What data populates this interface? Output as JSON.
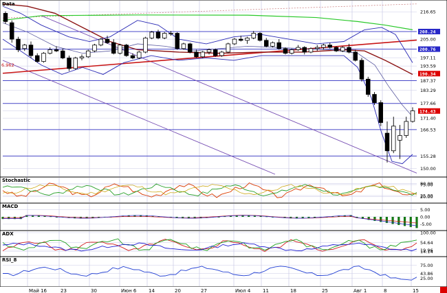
{
  "chart_data": {
    "type": "candlestick",
    "panes": {
      "price": {
        "label": "Data",
        "y_ticks": [
          "216.65",
          "208.24",
          "205.00",
          "200.76",
          "197.11",
          "193.59",
          "190.34",
          "187.37",
          "183.29",
          "177.66",
          "174.43",
          "171.40",
          "166.53",
          "155.28",
          "150.00"
        ],
        "left_annotation": "6.962",
        "ylim": [
          147.5,
          220.5
        ],
        "horizontal_levels": [
          208.24,
          200.76,
          187.37,
          177.66,
          166.53,
          155.28
        ],
        "candles": [
          [
            216.0,
            216.8,
            211.5,
            212.5
          ],
          [
            212.0,
            213.0,
            203.5,
            205.0
          ],
          [
            205.0,
            206.0,
            199.5,
            200.5
          ],
          [
            201.0,
            203.0,
            200.0,
            202.5
          ],
          [
            202.5,
            204.0,
            197.0,
            198.0
          ],
          [
            198.0,
            199.0,
            195.0,
            195.5
          ],
          [
            195.5,
            199.5,
            195.0,
            199.0
          ],
          [
            199.0,
            201.5,
            198.5,
            200.5
          ],
          [
            200.5,
            202.0,
            199.5,
            200.0
          ],
          [
            200.0,
            201.0,
            196.5,
            197.0
          ],
          [
            197.0,
            198.0,
            191.5,
            192.5
          ],
          [
            192.5,
            197.5,
            192.0,
            197.0
          ],
          [
            197.0,
            198.5,
            196.0,
            197.5
          ],
          [
            197.5,
            200.5,
            197.0,
            200.0
          ],
          [
            200.0,
            203.0,
            199.5,
            202.5
          ],
          [
            202.5,
            205.5,
            202.0,
            205.0
          ],
          [
            205.0,
            206.5,
            203.0,
            203.5
          ],
          [
            203.5,
            205.0,
            198.5,
            199.0
          ],
          [
            199.0,
            203.0,
            198.5,
            202.5
          ],
          [
            202.5,
            203.0,
            197.5,
            198.0
          ],
          [
            198.0,
            199.0,
            196.5,
            197.0
          ],
          [
            197.0,
            200.0,
            196.5,
            199.5
          ],
          [
            199.5,
            206.0,
            199.0,
            205.5
          ],
          [
            205.5,
            208.5,
            205.0,
            208.0
          ],
          [
            208.0,
            209.0,
            205.0,
            205.5
          ],
          [
            205.5,
            208.0,
            205.0,
            207.5
          ],
          [
            207.5,
            208.5,
            206.5,
            207.5
          ],
          [
            207.5,
            208.0,
            200.5,
            201.0
          ],
          [
            201.0,
            203.5,
            200.5,
            203.0
          ],
          [
            203.0,
            203.5,
            199.0,
            199.5
          ],
          [
            199.5,
            200.5,
            197.0,
            197.5
          ],
          [
            197.5,
            200.0,
            197.0,
            199.5
          ],
          [
            199.5,
            201.0,
            198.5,
            200.5
          ],
          [
            200.5,
            201.0,
            197.5,
            198.0
          ],
          [
            198.0,
            200.0,
            197.5,
            199.5
          ],
          [
            199.5,
            203.5,
            199.0,
            203.0
          ],
          [
            203.0,
            205.5,
            202.5,
            205.0
          ],
          [
            205.0,
            206.5,
            204.0,
            204.5
          ],
          [
            204.5,
            206.0,
            203.0,
            205.5
          ],
          [
            205.5,
            208.5,
            205.0,
            207.5
          ],
          [
            207.5,
            208.0,
            204.0,
            204.5
          ],
          [
            204.5,
            205.5,
            201.5,
            202.0
          ],
          [
            202.0,
            204.0,
            201.5,
            203.5
          ],
          [
            203.5,
            205.0,
            200.5,
            201.0
          ],
          [
            201.0,
            201.5,
            198.5,
            199.0
          ],
          [
            199.0,
            201.0,
            198.5,
            200.5
          ],
          [
            200.5,
            202.5,
            200.0,
            201.5
          ],
          [
            201.5,
            202.0,
            198.5,
            199.5
          ],
          [
            199.5,
            201.5,
            199.0,
            201.0
          ],
          [
            201.0,
            202.5,
            200.0,
            201.5
          ],
          [
            201.5,
            203.0,
            200.5,
            202.5
          ],
          [
            202.5,
            203.5,
            201.0,
            201.5
          ],
          [
            201.5,
            202.0,
            199.5,
            200.0
          ],
          [
            200.0,
            202.0,
            199.5,
            201.5
          ],
          [
            201.5,
            203.0,
            199.0,
            199.5
          ],
          [
            199.5,
            200.5,
            195.5,
            196.0
          ],
          [
            196.0,
            197.0,
            187.0,
            188.0
          ],
          [
            188.0,
            189.0,
            180.5,
            181.5
          ],
          [
            181.5,
            182.5,
            177.0,
            178.0
          ],
          [
            178.0,
            179.0,
            168.0,
            169.5
          ],
          [
            165.0,
            170.0,
            152.5,
            157.5
          ],
          [
            157.5,
            172.0,
            156.5,
            168.0
          ],
          [
            162.0,
            168.5,
            154.0,
            164.0
          ],
          [
            164.0,
            172.0,
            163.0,
            170.0
          ],
          [
            170.0,
            176.0,
            169.5,
            174.5
          ]
        ]
      },
      "stochastic": {
        "label": "Stochastic",
        "y_ticks": [
          "80.00",
          "75.00",
          "25.00",
          "20.00"
        ]
      },
      "macd": {
        "label": "MACD",
        "y_ticks": [
          "5.00",
          "0.00",
          "-5.00"
        ]
      },
      "adx": {
        "label": "ADX",
        "y_ticks": [
          "100.00",
          "54.64",
          "19.96",
          "14.14"
        ]
      },
      "rsi": {
        "label": "RSI_8",
        "y_ticks": [
          "75.00",
          "43.86",
          "25.00"
        ]
      }
    },
    "x_ticks": [
      "Май 16",
      "23",
      "30",
      "Июн 6",
      "14",
      "20",
      "27",
      "Июл 4",
      "11",
      "18",
      "25",
      "Авг 1",
      "8",
      "15"
    ],
    "colors": {
      "up_candle": "#ffffff",
      "down_candle": "#000000",
      "grid": "#c8c8e6",
      "level_line": "#4848c8",
      "trend_line_red": "#c81414",
      "ma_green": "#28c828",
      "ma_darkred": "#8c1414",
      "band_blue": "#2828b4",
      "channel_purple": "#7850b4",
      "stoch_k": "#dc3c00",
      "stoch_d": "#28a028",
      "macd_hist": "#147814",
      "adx_red": "#d21e1e",
      "adx_green": "#1ea01e",
      "adx_blue": "#1e1ed2",
      "rsi_line": "#1e3cd2",
      "tag_red": "#dc0000",
      "tag_blue": "#2828c8"
    }
  }
}
